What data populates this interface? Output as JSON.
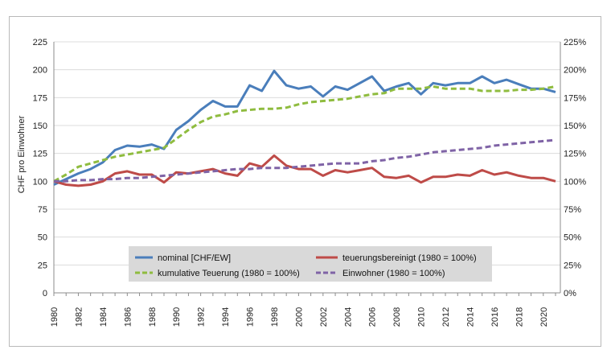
{
  "chart_data": {
    "type": "line",
    "title": "",
    "xlabel": "",
    "ylabel": "CHF pro Einwohner",
    "ylim": [
      0,
      225
    ],
    "y_ticks": [
      0,
      25,
      50,
      75,
      100,
      125,
      150,
      175,
      200,
      225
    ],
    "y2lim": [
      0,
      225
    ],
    "y2_ticks": [
      "0%",
      "25%",
      "50%",
      "75%",
      "100%",
      "125%",
      "150%",
      "175%",
      "200%",
      "225%"
    ],
    "x": [
      1980,
      1981,
      1982,
      1983,
      1984,
      1985,
      1986,
      1987,
      1988,
      1989,
      1990,
      1991,
      1992,
      1993,
      1994,
      1995,
      1996,
      1997,
      1998,
      1999,
      2000,
      2001,
      2002,
      2003,
      2004,
      2005,
      2006,
      2007,
      2008,
      2009,
      2010,
      2011,
      2012,
      2013,
      2014,
      2015,
      2016,
      2017,
      2018,
      2019,
      2020,
      2021
    ],
    "x_tick_labels": [
      "1980",
      "1982",
      "1984",
      "1986",
      "1988",
      "1990",
      "1992",
      "1994",
      "1996",
      "1998",
      "2000",
      "2002",
      "2004",
      "2006",
      "2008",
      "2010",
      "2012",
      "2014",
      "2016",
      "2018",
      "2020"
    ],
    "legend": "bottom-center",
    "series": [
      {
        "name": "nominal [CHF/EW]",
        "axis": "left",
        "color": "#4a7ebb",
        "dash": "solid",
        "values": [
          97,
          102,
          107,
          111,
          117,
          128,
          132,
          131,
          133,
          129,
          146,
          154,
          164,
          172,
          167,
          167,
          186,
          181,
          199,
          186,
          183,
          185,
          176,
          185,
          182,
          188,
          194,
          181,
          185,
          188,
          178,
          188,
          186,
          188,
          188,
          194,
          188,
          191,
          187,
          183,
          183,
          180
        ]
      },
      {
        "name": "teuerungsbereinigt (1980 = 100%)",
        "axis": "right",
        "color": "#be4b48",
        "dash": "solid",
        "values": [
          100,
          97,
          96,
          97,
          100,
          107,
          109,
          106,
          106,
          99,
          108,
          107,
          109,
          111,
          107,
          105,
          116,
          113,
          123,
          114,
          111,
          111,
          105,
          110,
          108,
          110,
          112,
          104,
          103,
          105,
          99,
          104,
          104,
          106,
          105,
          110,
          106,
          108,
          105,
          103,
          103,
          100
        ]
      },
      {
        "name": "kumulative Teuerung (1980 = 100%)",
        "axis": "right",
        "color": "#8fbc3f",
        "dash": "dashed",
        "values": [
          100,
          106,
          113,
          116,
          119,
          122,
          124,
          126,
          128,
          130,
          138,
          146,
          153,
          158,
          160,
          163,
          164,
          165,
          165,
          166,
          169,
          171,
          172,
          173,
          174,
          176,
          178,
          179,
          183,
          183,
          183,
          185,
          183,
          183,
          183,
          181,
          181,
          181,
          182,
          182,
          183,
          185
        ]
      },
      {
        "name": "Einwohner (1980 = 100%)",
        "axis": "right",
        "color": "#7f63a6",
        "dash": "dashed",
        "values": [
          100,
          100,
          101,
          101,
          102,
          102,
          103,
          103,
          104,
          105,
          106,
          107,
          108,
          109,
          110,
          111,
          111,
          112,
          112,
          112,
          113,
          114,
          115,
          116,
          116,
          116,
          118,
          119,
          121,
          122,
          124,
          126,
          127,
          128,
          129,
          130,
          132,
          133,
          134,
          135,
          136,
          137
        ]
      }
    ]
  }
}
